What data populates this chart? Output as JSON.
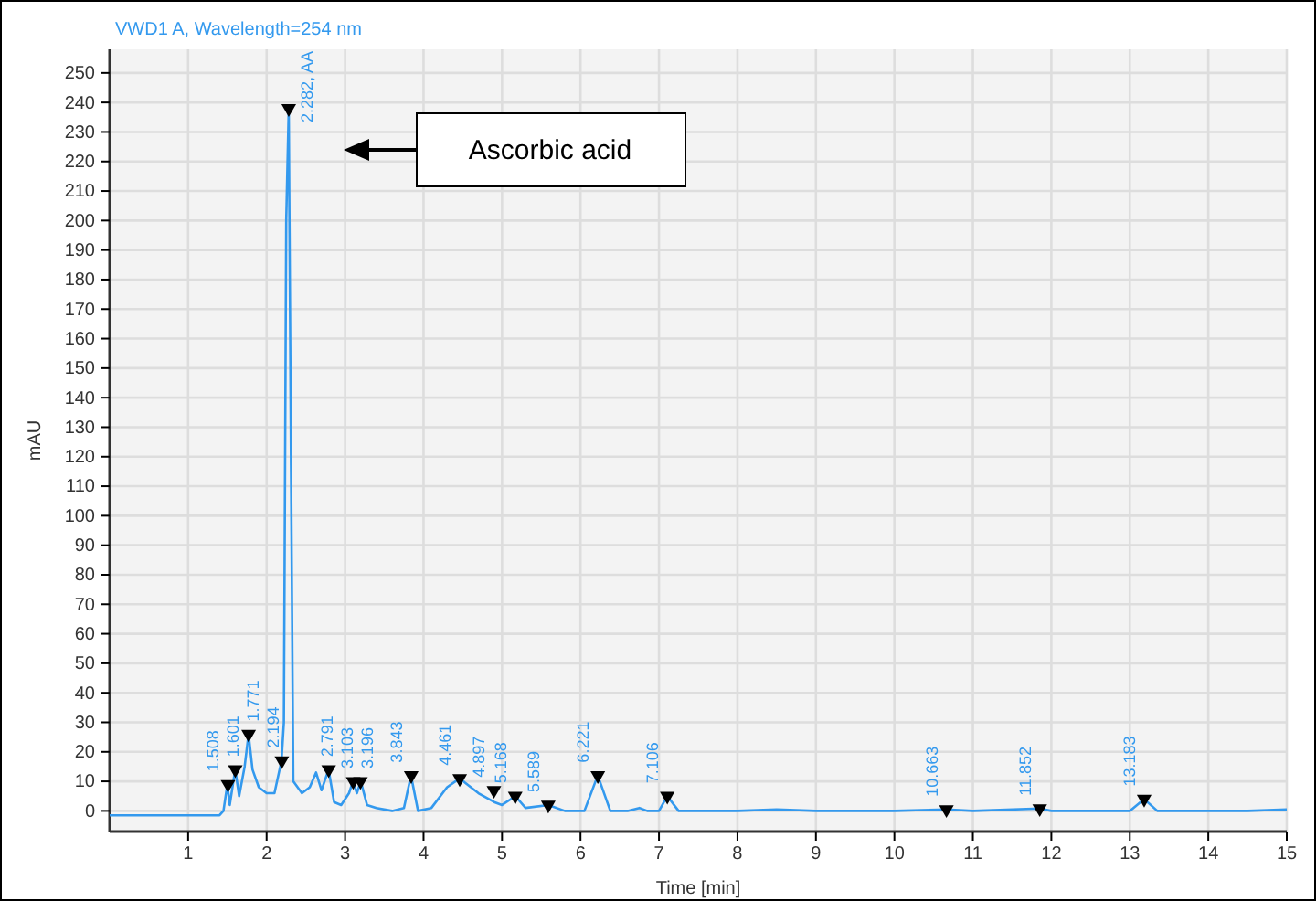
{
  "chart_data": {
    "type": "line",
    "title": "VWD1 A, Wavelength=254 nm",
    "xlabel": "Time [min]",
    "ylabel": "mAU",
    "xlim": [
      0,
      15
    ],
    "ylim": [
      -7,
      258
    ],
    "xticks": [
      1,
      2,
      3,
      4,
      5,
      6,
      7,
      8,
      9,
      10,
      11,
      12,
      13,
      14,
      15
    ],
    "yticks": [
      0,
      10,
      20,
      30,
      40,
      50,
      60,
      70,
      80,
      90,
      100,
      110,
      120,
      130,
      140,
      150,
      160,
      170,
      180,
      190,
      200,
      210,
      220,
      230,
      240,
      250
    ],
    "grid": true,
    "annotations": [
      "Ascorbic acid",
      {
        "text": "1.508",
        "x": 1.508,
        "y": 9
      },
      {
        "text": "1.601",
        "x": 1.601,
        "y": 14
      },
      {
        "text": "1.771",
        "x": 1.771,
        "y": 26
      },
      {
        "text": "2.194",
        "x": 2.194,
        "y": 17
      },
      {
        "text": "2.282, AA",
        "x": 2.282,
        "y": 238
      },
      {
        "text": "2.791",
        "x": 2.791,
        "y": 14
      },
      {
        "text": "3.103",
        "x": 3.103,
        "y": 10
      },
      {
        "text": "3.196",
        "x": 3.196,
        "y": 10
      },
      {
        "text": "3.843",
        "x": 3.843,
        "y": 12
      },
      {
        "text": "4.461",
        "x": 4.461,
        "y": 11
      },
      {
        "text": "4.897",
        "x": 4.897,
        "y": 7
      },
      {
        "text": "5.168",
        "x": 5.168,
        "y": 5
      },
      {
        "text": "5.589",
        "x": 5.589,
        "y": 2
      },
      {
        "text": "6.221",
        "x": 6.221,
        "y": 12
      },
      {
        "text": "7.106",
        "x": 7.106,
        "y": 5
      },
      {
        "text": "10.663",
        "x": 10.663,
        "y": 0.5
      },
      {
        "text": "11.852",
        "x": 11.852,
        "y": 0.8
      },
      {
        "text": "13.183",
        "x": 13.183,
        "y": 4
      }
    ],
    "series": [
      {
        "color": "#3399ee",
        "x": [
          0,
          1.4,
          1.45,
          1.5,
          1.53,
          1.6,
          1.65,
          1.72,
          1.77,
          1.82,
          1.9,
          2.0,
          2.1,
          2.19,
          2.22,
          2.25,
          2.282,
          2.31,
          2.34,
          2.45,
          2.55,
          2.63,
          2.7,
          2.79,
          2.86,
          2.95,
          3.05,
          3.1,
          3.15,
          3.2,
          3.28,
          3.4,
          3.6,
          3.75,
          3.84,
          3.93,
          4.1,
          4.3,
          4.46,
          4.7,
          4.9,
          5.0,
          5.17,
          5.3,
          5.59,
          5.8,
          6.05,
          6.22,
          6.38,
          6.6,
          6.75,
          6.85,
          7.0,
          7.106,
          7.25,
          8,
          8.5,
          9,
          10,
          10.663,
          11,
          11.852,
          12,
          13.0,
          13.183,
          13.35,
          14.5,
          15
        ],
        "values": [
          -1.5,
          -1.5,
          0,
          9,
          2,
          14,
          5,
          15,
          26,
          14,
          8,
          6,
          6,
          17,
          30,
          200,
          238,
          120,
          10,
          6,
          8,
          13,
          7,
          14,
          3,
          2,
          6,
          10,
          6,
          10,
          2,
          1,
          0,
          1,
          12,
          0,
          1,
          8,
          11,
          6,
          3,
          2,
          5,
          1,
          2,
          0,
          0,
          12,
          0,
          0,
          1,
          0,
          0,
          5,
          0,
          0,
          0.5,
          0,
          0,
          0.5,
          0,
          0.8,
          0,
          0,
          4,
          0,
          0,
          0.5
        ]
      },
      {
        "type": "scatter",
        "color": "#000000",
        "marker": "triangle",
        "x": [
          1.508,
          1.601,
          1.771,
          2.194,
          2.282,
          2.791,
          3.103,
          3.196,
          3.843,
          4.461,
          4.897,
          5.168,
          5.589,
          6.221,
          7.106,
          10.663,
          11.852,
          13.183
        ],
        "values": [
          9,
          14,
          26,
          17,
          238,
          14,
          10,
          10,
          12,
          11,
          7,
          5,
          2,
          12,
          5,
          0.5,
          0.8,
          4
        ]
      }
    ]
  }
}
